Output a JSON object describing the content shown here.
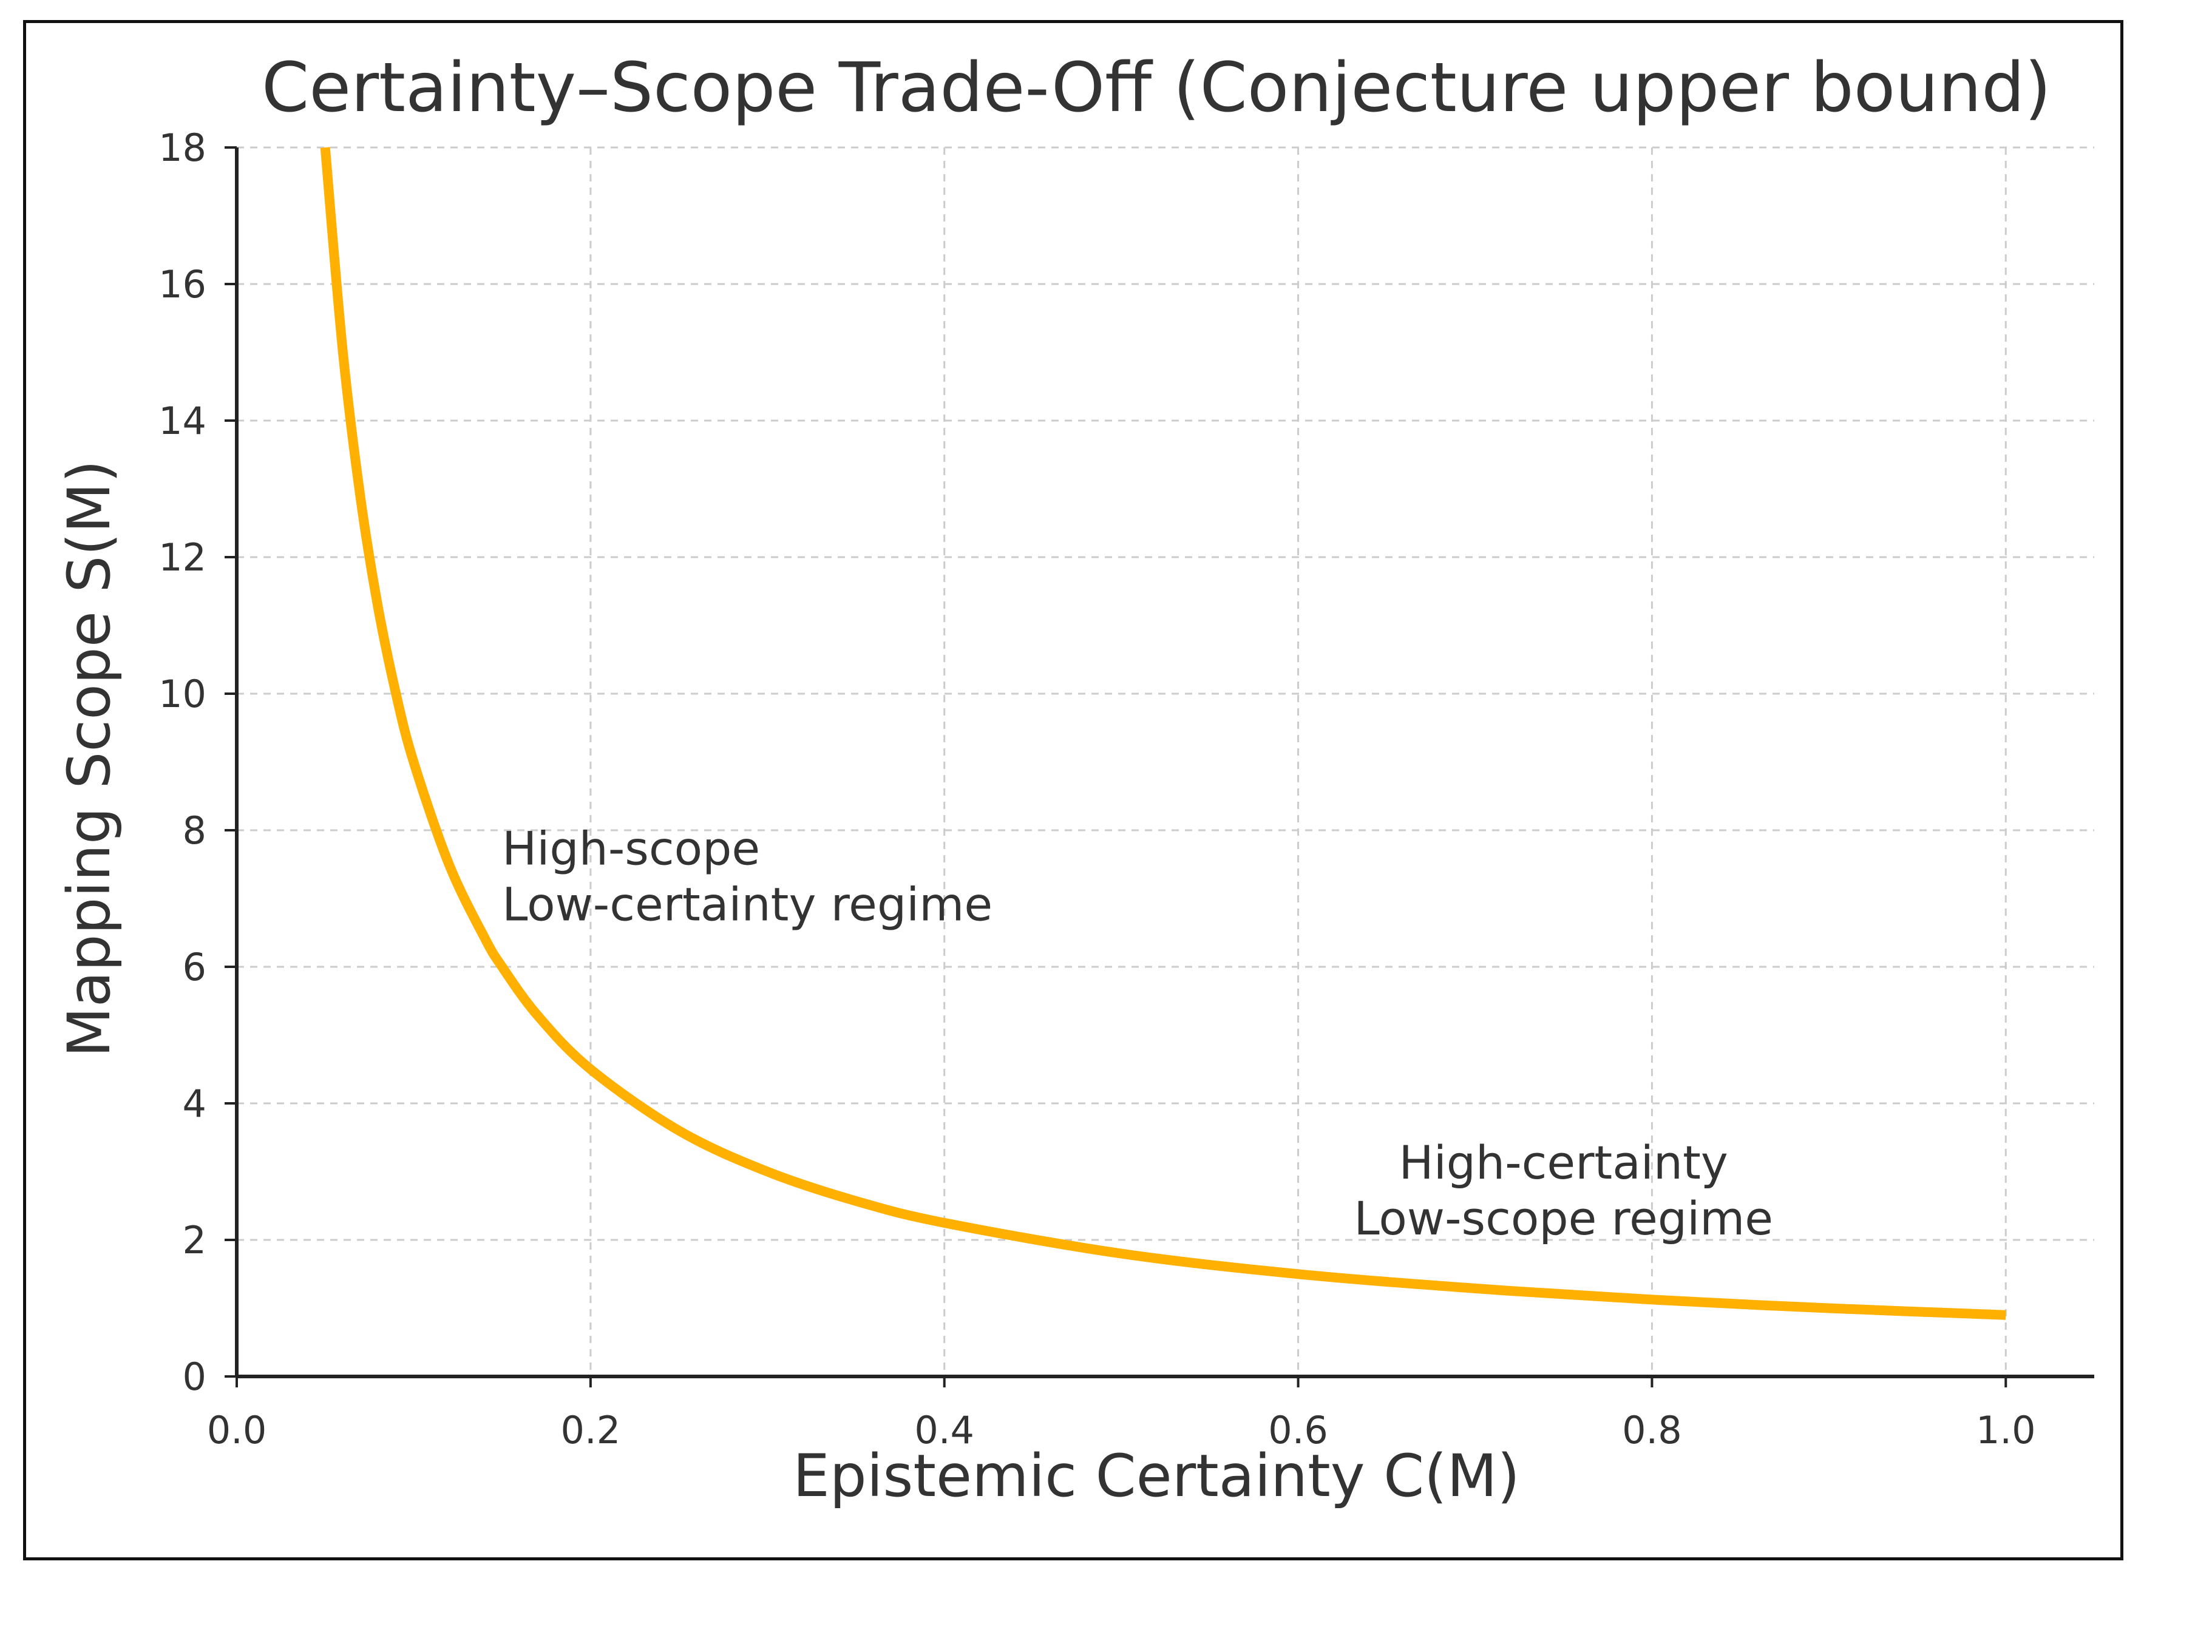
{
  "chart_data": {
    "type": "line",
    "title": "Certainty–Scope Trade-Off (Conjecture upper bound)",
    "xlabel": "Epistemic Certainty  C(M)",
    "ylabel": "Mapping Scope  S(M)",
    "xlim": [
      0.0,
      1.05
    ],
    "ylim": [
      0,
      18
    ],
    "xticks": [
      "0.0",
      "0.2",
      "0.4",
      "0.6",
      "0.8",
      "1.0"
    ],
    "xtick_values": [
      0.0,
      0.2,
      0.4,
      0.6,
      0.8,
      1.0
    ],
    "yticks": [
      "0",
      "2",
      "4",
      "6",
      "8",
      "10",
      "12",
      "14",
      "16",
      "18"
    ],
    "ytick_values": [
      0,
      2,
      4,
      6,
      8,
      10,
      12,
      14,
      16,
      18
    ],
    "grid": true,
    "series": [
      {
        "color": "#FFB000",
        "x": [
          0.05,
          0.06,
          0.07,
          0.08,
          0.09,
          0.1,
          0.12,
          0.14,
          0.15,
          0.17,
          0.2,
          0.25,
          0.3,
          0.35,
          0.4,
          0.5,
          0.6,
          0.7,
          0.8,
          0.9,
          1.0
        ],
        "y": [
          18.0,
          15.0,
          12.86,
          11.25,
          10.0,
          9.0,
          7.5,
          6.43,
          6.0,
          5.29,
          4.5,
          3.6,
          3.0,
          2.57,
          2.25,
          1.8,
          1.5,
          1.29,
          1.125,
          1.0,
          0.9
        ]
      }
    ],
    "annotations": [
      {
        "lines": [
          "High-scope",
          "Low-certainty regime"
        ],
        "x": 0.15,
        "y": 7.5,
        "align": "left"
      },
      {
        "lines": [
          "High-certainty",
          "Low-scope regime"
        ],
        "x": 0.75,
        "y": 2.9,
        "align": "center"
      }
    ]
  }
}
